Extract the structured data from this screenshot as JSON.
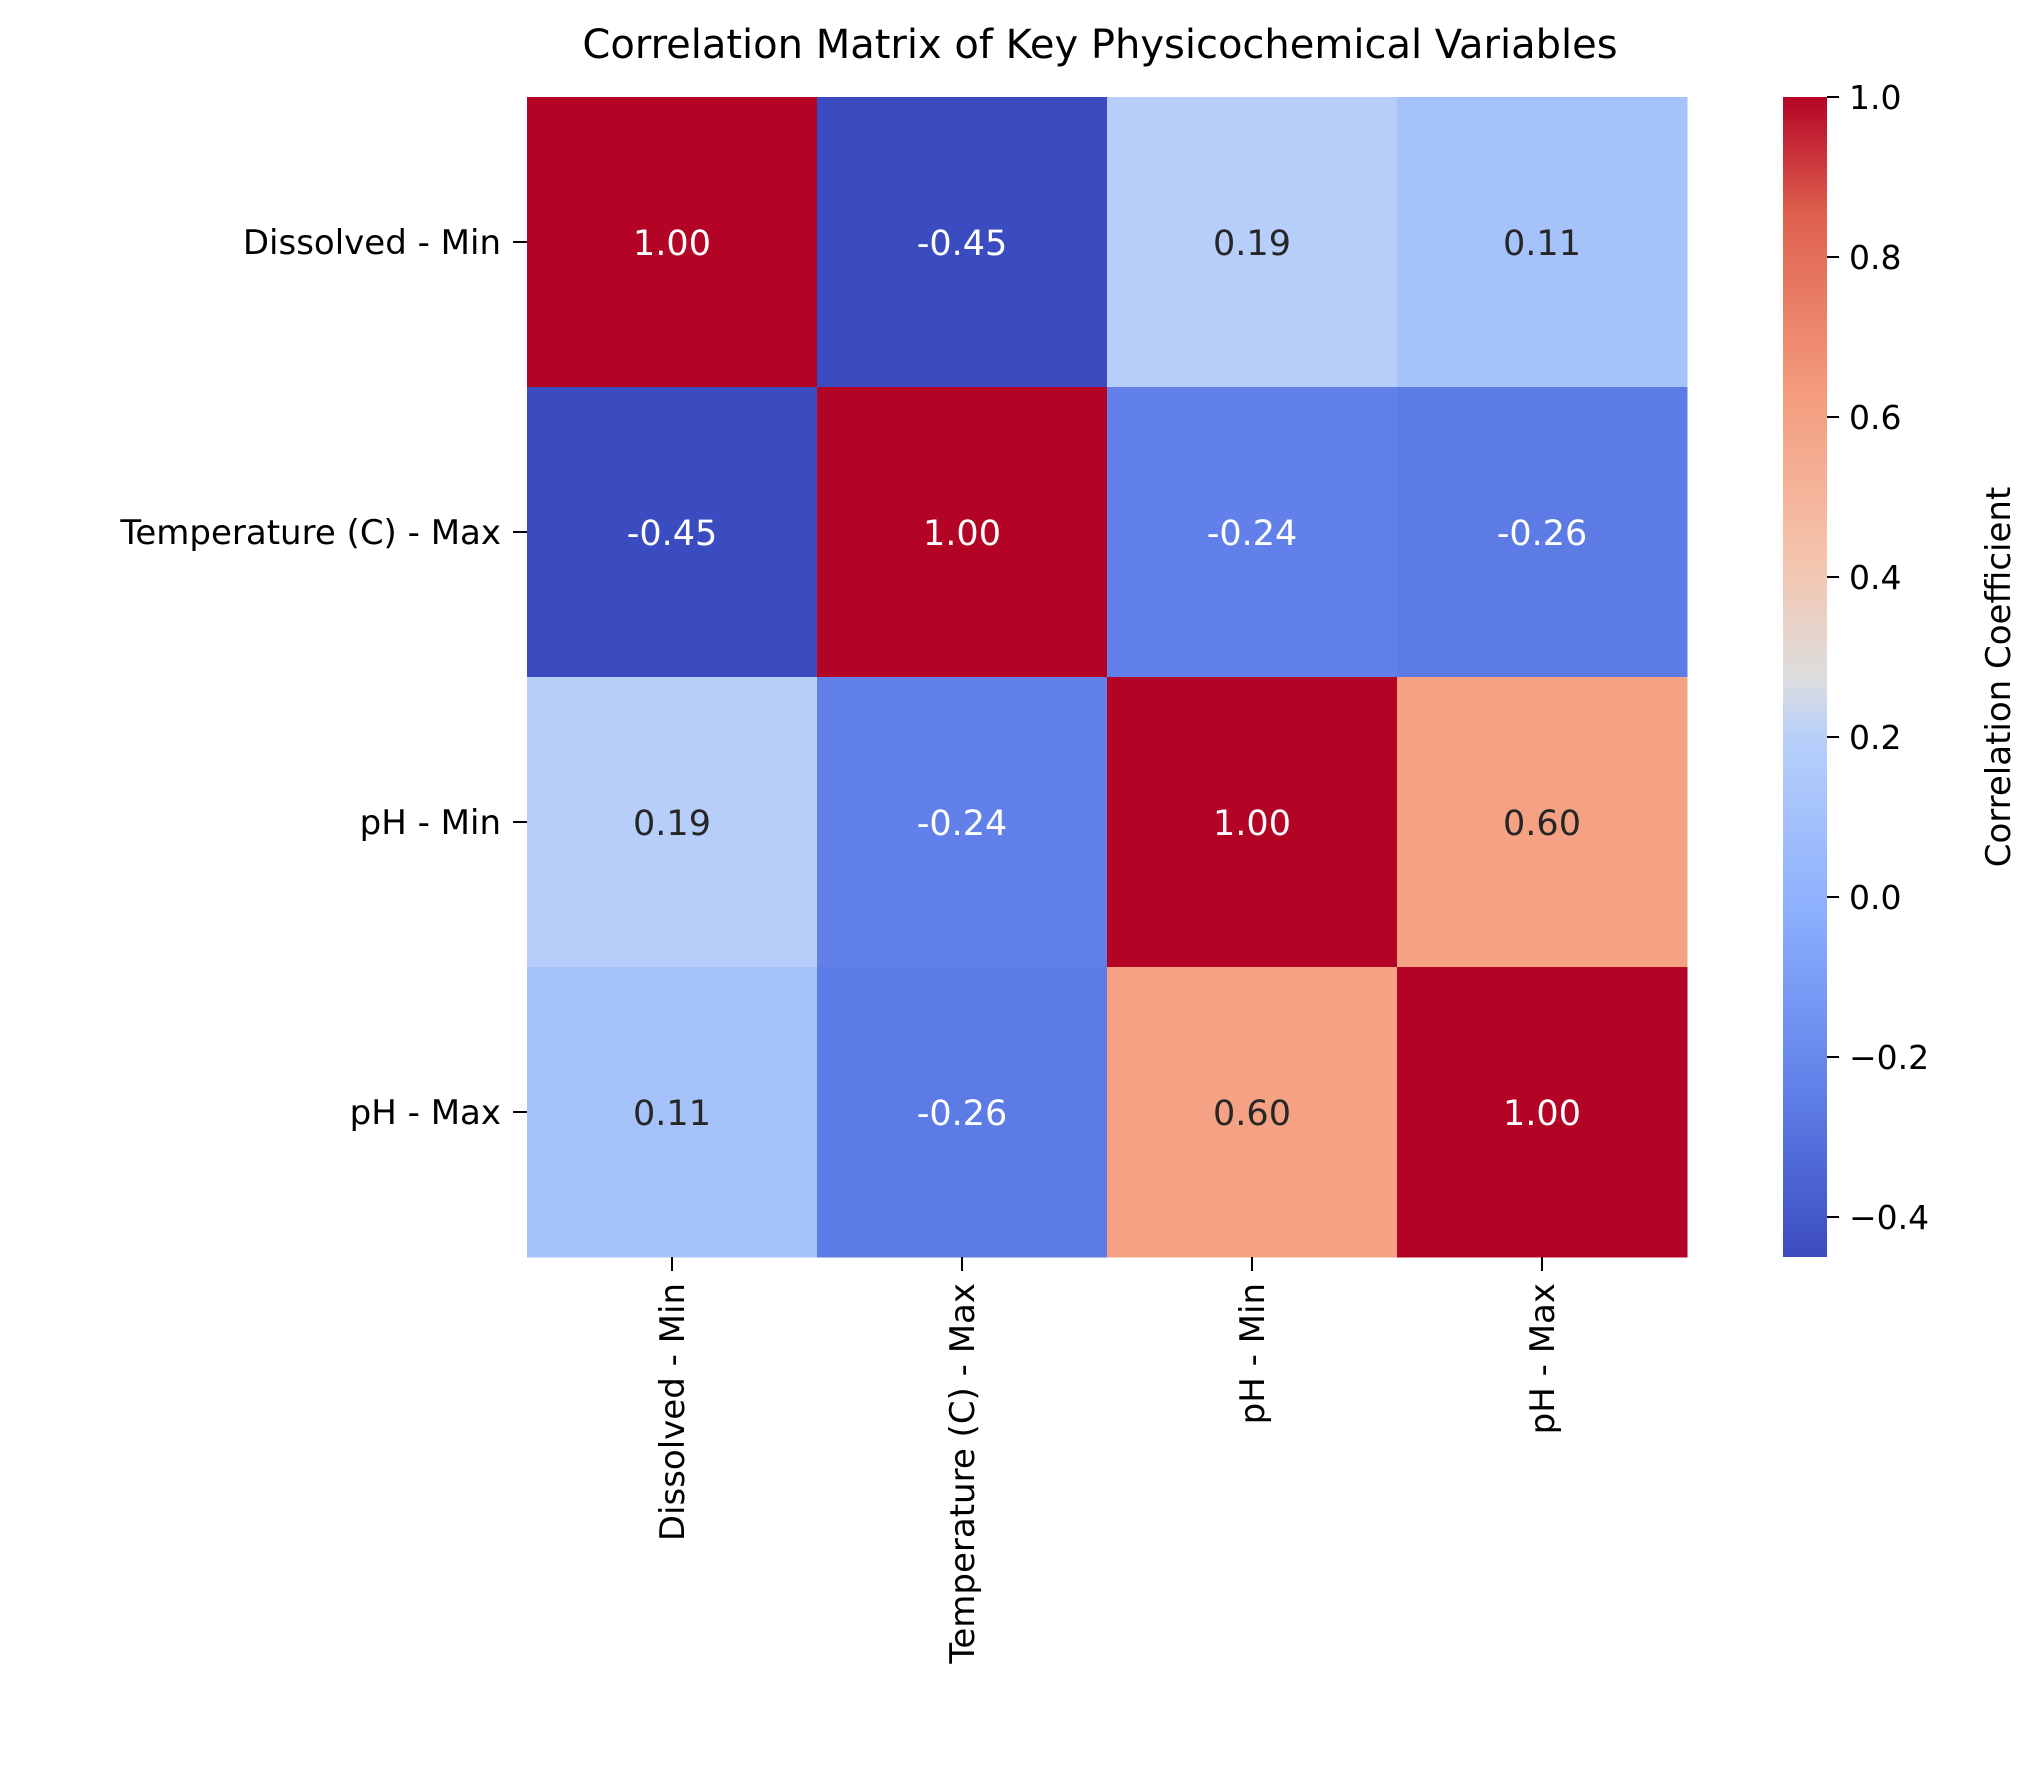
{
  "chart_data": {
    "type": "heatmap",
    "title": "Correlation Matrix of Key Physicochemical Variables",
    "row_labels": [
      "Dissolved - Min",
      "Temperature (C) - Max",
      "pH - Min",
      "pH - Max"
    ],
    "col_labels": [
      "Dissolved - Min",
      "Temperature (C) - Max",
      "pH - Min",
      "pH - Max"
    ],
    "values": [
      [
        1.0,
        -0.45,
        0.19,
        0.11
      ],
      [
        -0.45,
        1.0,
        -0.24,
        -0.26
      ],
      [
        0.19,
        -0.24,
        1.0,
        0.6
      ],
      [
        0.11,
        -0.26,
        0.6,
        1.0
      ]
    ],
    "value_format": "2 decimals",
    "colormap": "coolwarm",
    "colorbar": {
      "label": "Correlation Coefficient",
      "range": [
        -0.45,
        1.0
      ],
      "ticks": [
        1.0,
        0.8,
        0.6,
        0.4,
        0.2,
        0.0,
        -0.2,
        -0.4
      ],
      "tick_labels": [
        "1.0",
        "0.8",
        "0.6",
        "0.4",
        "0.2",
        "0.0",
        "−0.2",
        "−0.4"
      ],
      "position": "right"
    },
    "grid": false
  }
}
